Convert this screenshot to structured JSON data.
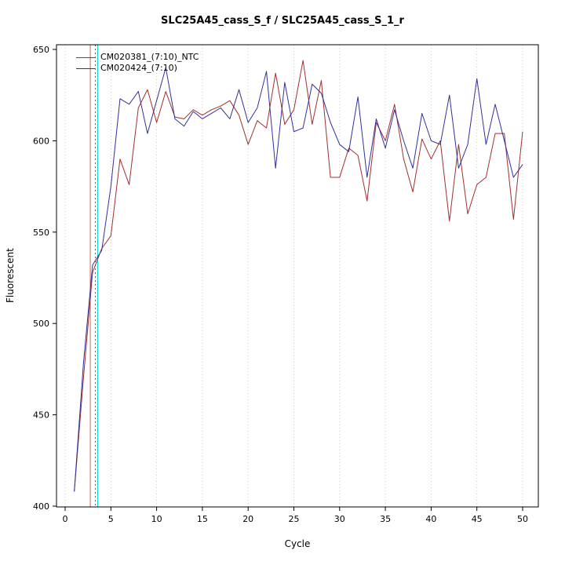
{
  "chart_data": {
    "type": "line",
    "title": "SLC25A45_cass_S_f / SLC25A45_cass_S_1_r",
    "xlabel": "Cycle",
    "ylabel": "Fluorescent",
    "xlim": [
      0,
      50
    ],
    "ylim": [
      400,
      650
    ],
    "xticks": [
      0,
      5,
      10,
      15,
      20,
      25,
      30,
      35,
      40,
      45,
      50
    ],
    "yticks": [
      400,
      450,
      500,
      550,
      600,
      650
    ],
    "grid": "vertical-dotted",
    "grid_color": "#c8c8c8",
    "legend_position": "top-left",
    "series": [
      {
        "name": "CM020381_(7:10)_NTC",
        "color": "#a03030",
        "values": [
          408,
          470,
          528,
          541,
          548,
          590,
          576,
          618,
          628,
          610,
          627,
          613,
          612,
          617,
          614,
          617,
          619,
          622,
          614,
          598,
          611,
          607,
          637,
          609,
          617,
          644,
          609,
          633,
          580,
          580,
          596,
          592,
          567,
          610,
          600,
          620,
          590,
          572,
          601,
          590,
          600,
          556,
          598,
          560,
          576,
          580,
          604,
          604,
          557,
          605
        ]
      },
      {
        "name": "CM020424_(7:10)",
        "color": "#31319c",
        "values": [
          408,
          478,
          532,
          540,
          575,
          623,
          620,
          627,
          604,
          622,
          640,
          612,
          608,
          616,
          612,
          615,
          618,
          612,
          628,
          610,
          618,
          638,
          585,
          632,
          605,
          607,
          631,
          626,
          610,
          598,
          594,
          624,
          580,
          612,
          596,
          617,
          600,
          585,
          615,
          600,
          598,
          625,
          585,
          598,
          634,
          598,
          620,
          600,
          580,
          587
        ]
      }
    ],
    "reference_lines": [
      {
        "x": 2.75,
        "color": "#cc6666",
        "style": "solid"
      },
      {
        "x": 3.3,
        "color": "#5555aa",
        "style": "dotted"
      },
      {
        "x": 3.55,
        "color": "#00cccc",
        "style": "solid"
      }
    ]
  }
}
